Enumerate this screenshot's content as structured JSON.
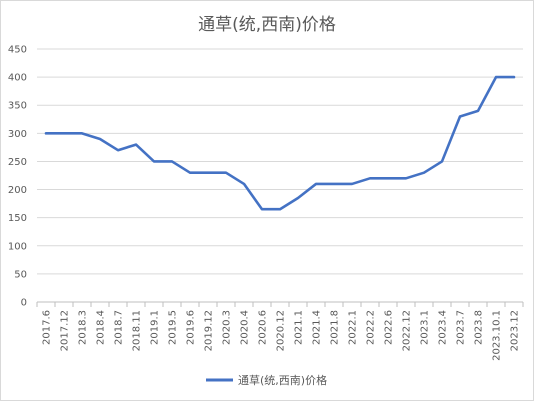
{
  "chart_data": {
    "type": "line",
    "title": "通草(统,西南)价格",
    "xlabel": "",
    "ylabel": "",
    "ylim": [
      0,
      450
    ],
    "yticks": [
      0,
      50,
      100,
      150,
      200,
      250,
      300,
      350,
      400,
      450
    ],
    "grid": true,
    "legend_position": "bottom",
    "categories": [
      "2017.6",
      "2017.12",
      "2018.3",
      "2018.4",
      "2018.7",
      "2018.11",
      "2019.1",
      "2019.5",
      "2019.6",
      "2019.12",
      "2020.3",
      "2020.4",
      "2020.6",
      "2020.12",
      "2021.1",
      "2021.4",
      "2021.8",
      "2022.1",
      "2022.2",
      "2022.6",
      "2022.12",
      "2023.1",
      "2023.4",
      "2023.7",
      "2023.8",
      "2023.10.1",
      "2023.12"
    ],
    "series": [
      {
        "name": "通草(统,西南)价格",
        "color": "#4472c4",
        "values": [
          300,
          300,
          300,
          290,
          270,
          280,
          250,
          250,
          230,
          230,
          230,
          210,
          165,
          165,
          185,
          210,
          210,
          210,
          220,
          220,
          220,
          230,
          250,
          330,
          340,
          400,
          400
        ]
      }
    ]
  }
}
